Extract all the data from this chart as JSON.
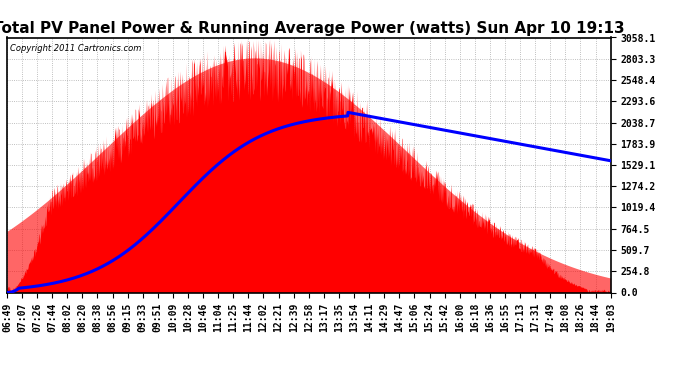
{
  "title": "Total PV Panel Power & Running Average Power (watts) Sun Apr 10 19:13",
  "copyright": "Copyright 2011 Cartronics.com",
  "y_max": 3058.1,
  "y_ticks": [
    0.0,
    254.8,
    509.7,
    764.5,
    1019.4,
    1274.2,
    1529.1,
    1783.9,
    2038.7,
    2293.6,
    2548.4,
    2803.3,
    3058.1
  ],
  "x_labels": [
    "06:49",
    "07:07",
    "07:26",
    "07:44",
    "08:02",
    "08:20",
    "08:38",
    "08:56",
    "09:15",
    "09:33",
    "09:51",
    "10:09",
    "10:28",
    "10:46",
    "11:04",
    "11:25",
    "11:44",
    "12:02",
    "12:21",
    "12:39",
    "12:58",
    "13:17",
    "13:35",
    "13:54",
    "14:11",
    "14:29",
    "14:47",
    "15:06",
    "15:24",
    "15:42",
    "16:00",
    "16:18",
    "16:36",
    "16:55",
    "17:13",
    "17:31",
    "17:49",
    "18:08",
    "18:26",
    "18:44",
    "19:03"
  ],
  "bg_color": "#ffffff",
  "grid_color": "#aaaaaa",
  "area_color": "#ff0000",
  "line_color": "#0000ff",
  "title_fontsize": 11,
  "tick_fontsize": 7,
  "fig_width": 6.9,
  "fig_height": 3.75,
  "dpi": 100
}
